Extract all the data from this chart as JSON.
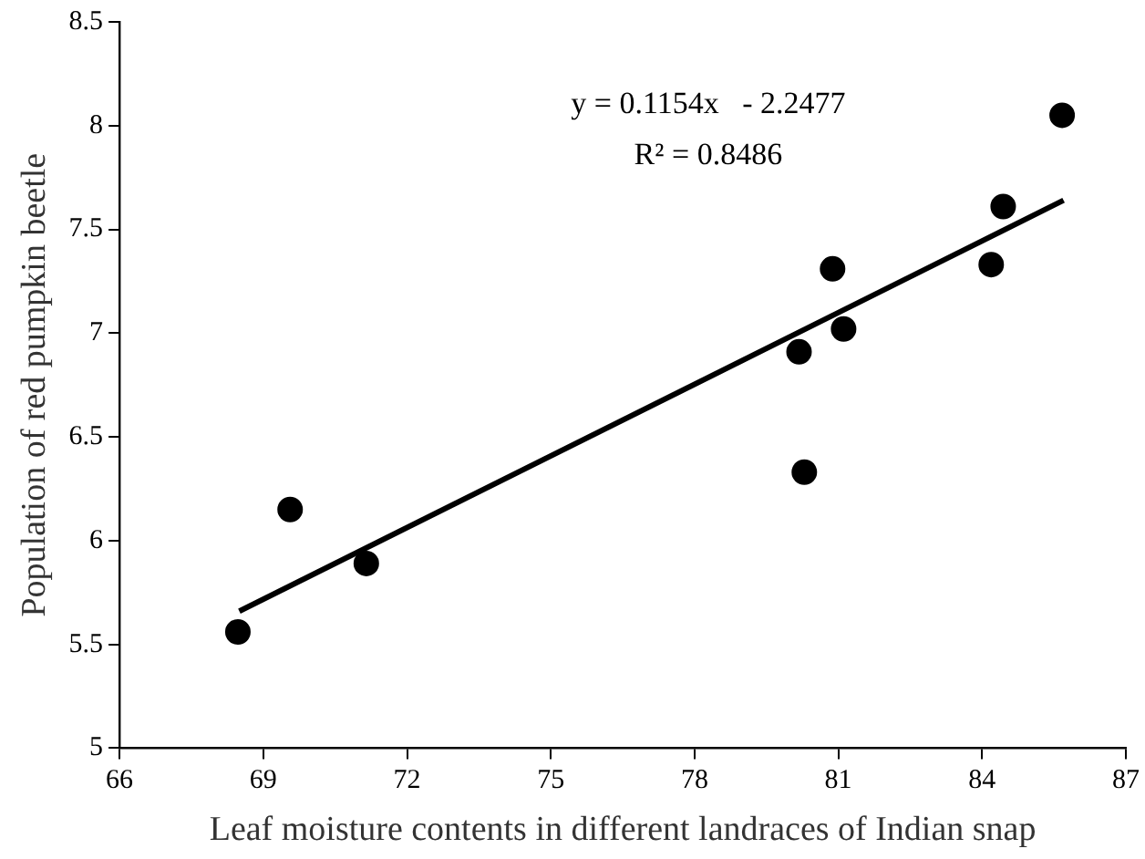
{
  "chart_data": {
    "type": "scatter",
    "xlabel": "Leaf moisture contents in different landraces of Indian snap",
    "ylabel": "Population of red pumpkin beetle",
    "x": [
      68.47,
      69.56,
      71.15,
      80.18,
      80.29,
      80.88,
      81.11,
      84.19,
      84.44,
      85.67
    ],
    "series": [
      {
        "color": "#000000",
        "marker": "circle",
        "values": [
          5.56,
          6.15,
          5.89,
          6.91,
          6.33,
          7.31,
          7.02,
          7.33,
          7.61,
          8.05
        ]
      },
      {
        "type": "line",
        "color": "#000000",
        "marker": "none",
        "x": [
          68.5,
          85.7
        ],
        "values": [
          5.66,
          7.64
        ]
      }
    ],
    "xlim": [
      66,
      87
    ],
    "xticks": [
      66,
      69,
      72,
      75,
      78,
      81,
      84,
      87
    ],
    "ylim": [
      5,
      8.5
    ],
    "yticks": [
      5,
      5.5,
      6,
      6.5,
      7,
      7.5,
      8,
      8.5
    ],
    "grid": false,
    "legend": false,
    "line_style": "solid",
    "annotations": [
      "y = 0.1154x   - 2.2477",
      "R² = 0.8486"
    ]
  }
}
